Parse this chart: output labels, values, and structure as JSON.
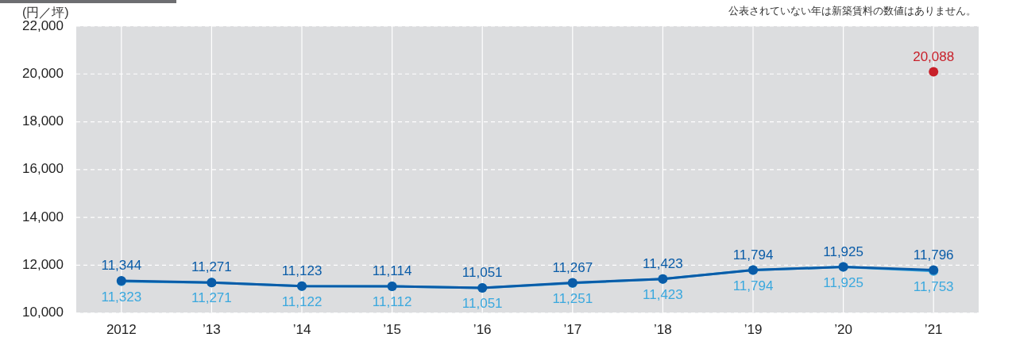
{
  "chart_data": {
    "type": "line",
    "ylabel": "(円／坪)",
    "annotations": [
      "公表されていない年は新築賃料の数値はありません。"
    ],
    "categories": [
      "2012",
      "’13",
      "’14",
      "’15",
      "’16",
      "’17",
      "’18",
      "’19",
      "’20",
      "’21"
    ],
    "series": [
      {
        "color": "#0a5ca8",
        "values": [
          11344,
          11271,
          11123,
          11114,
          11051,
          11267,
          11423,
          11794,
          11925,
          11796
        ],
        "value_labels": [
          "11,344",
          "11,271",
          "11,123",
          "11,114",
          "11,051",
          "11,267",
          "11,423",
          "11,794",
          "11,925",
          "11,796"
        ]
      },
      {
        "color": "#3aa8de",
        "values": [
          11323,
          11271,
          11122,
          11112,
          11051,
          11251,
          11423,
          11794,
          11925,
          11753
        ],
        "value_labels": [
          "11,323",
          "11,271",
          "11,122",
          "11,112",
          "11,051",
          "11,251",
          "11,423",
          "11,794",
          "11,925",
          "11,753"
        ]
      },
      {
        "type": "scatter",
        "color": "#c8202a",
        "values": [
          null,
          null,
          null,
          null,
          null,
          null,
          null,
          null,
          null,
          20088
        ],
        "value_labels": [
          null,
          null,
          null,
          null,
          null,
          null,
          null,
          null,
          null,
          "20,088"
        ]
      }
    ],
    "ylim": [
      10000,
      22000
    ],
    "yticks": [
      {
        "value": 10000,
        "label": "10,000"
      },
      {
        "value": 12000,
        "label": "12,000"
      },
      {
        "value": 14000,
        "label": "14,000"
      },
      {
        "value": 16000,
        "label": "16,000"
      },
      {
        "value": 18000,
        "label": "18,000"
      },
      {
        "value": 20000,
        "label": "20,000"
      },
      {
        "value": 22000,
        "label": "22,000"
      }
    ],
    "grid": true,
    "legend": false,
    "marker": "circle",
    "line_style": "solid"
  }
}
